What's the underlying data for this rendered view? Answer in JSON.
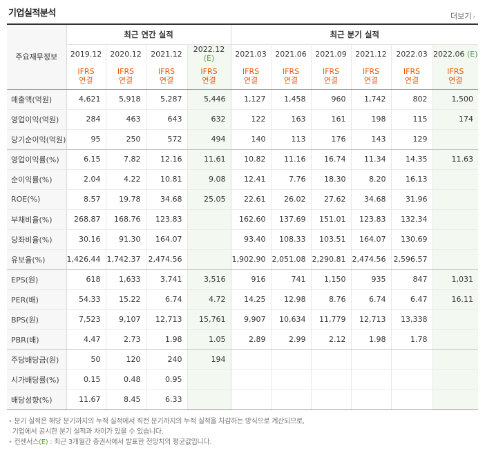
{
  "title": "기업실적분석",
  "more_label": "더보기",
  "row_header_label": "주요재무정보",
  "groups": {
    "annual": "최근 연간 실적",
    "quarterly": "최근 분기 실적"
  },
  "periods": [
    {
      "label": "2019.12",
      "est": ""
    },
    {
      "label": "2020.12",
      "est": ""
    },
    {
      "label": "2021.12",
      "est": ""
    },
    {
      "label": "2022.12",
      "est": "(E)"
    },
    {
      "label": "2021.03",
      "est": ""
    },
    {
      "label": "2021.06",
      "est": ""
    },
    {
      "label": "2021.09",
      "est": ""
    },
    {
      "label": "2021.12",
      "est": ""
    },
    {
      "label": "2022.03",
      "est": ""
    },
    {
      "label": "2022.06",
      "est": "(E)"
    }
  ],
  "standard": {
    "line1": "IFRS",
    "line2": "연결"
  },
  "rows": [
    {
      "label": "매출액(억원)",
      "values": [
        "4,621",
        "5,918",
        "5,287",
        "5,446",
        "1,127",
        "1,458",
        "960",
        "1,742",
        "802",
        "1,500"
      ]
    },
    {
      "label": "영업이익(억원)",
      "values": [
        "284",
        "463",
        "643",
        "632",
        "122",
        "163",
        "161",
        "198",
        "115",
        "174"
      ]
    },
    {
      "label": "당기순이익(억원)",
      "values": [
        "95",
        "250",
        "572",
        "494",
        "140",
        "113",
        "176",
        "143",
        "129",
        ""
      ]
    },
    {
      "label": "영업이익률(%)",
      "values": [
        "6.15",
        "7.82",
        "12.16",
        "11.61",
        "10.82",
        "11.16",
        "16.74",
        "11.34",
        "14.35",
        "11.63"
      ]
    },
    {
      "label": "순이익률(%)",
      "values": [
        "2.04",
        "4.22",
        "10.81",
        "9.08",
        "12.41",
        "7.76",
        "18.30",
        "8.20",
        "16.13",
        ""
      ]
    },
    {
      "label": "ROE(%)",
      "values": [
        "8.57",
        "19.78",
        "34.68",
        "25.05",
        "22.61",
        "26.02",
        "27.62",
        "34.68",
        "31.96",
        ""
      ]
    },
    {
      "label": "부채비율(%)",
      "values": [
        "268.87",
        "168.76",
        "123.83",
        "",
        "162.60",
        "137.69",
        "151.01",
        "123.83",
        "132.34",
        ""
      ]
    },
    {
      "label": "당좌비율(%)",
      "values": [
        "30.16",
        "91.30",
        "164.07",
        "",
        "93.40",
        "108.33",
        "103.51",
        "164.07",
        "130.69",
        ""
      ]
    },
    {
      "label": "유보율(%)",
      "values": [
        "1,426.44",
        "1,742.37",
        "2,474.56",
        "",
        "1,902.90",
        "2,051.08",
        "2,290.81",
        "2,474.56",
        "2,596.57",
        ""
      ]
    },
    {
      "label": "EPS(원)",
      "values": [
        "618",
        "1,633",
        "3,741",
        "3,516",
        "916",
        "741",
        "1,150",
        "935",
        "847",
        "1,031"
      ]
    },
    {
      "label": "PER(배)",
      "values": [
        "54.33",
        "15.22",
        "6.74",
        "4.72",
        "14.25",
        "12.98",
        "8.76",
        "6.74",
        "6.47",
        "16.11"
      ]
    },
    {
      "label": "BPS(원)",
      "values": [
        "7,523",
        "9,107",
        "12,713",
        "15,761",
        "9,907",
        "10,634",
        "11,779",
        "12,713",
        "13,338",
        ""
      ]
    },
    {
      "label": "PBR(배)",
      "values": [
        "4.47",
        "2.73",
        "1.98",
        "1.05",
        "2.89",
        "2.99",
        "2.12",
        "1.98",
        "1.78",
        ""
      ]
    },
    {
      "label": "주당배당금(원)",
      "values": [
        "50",
        "120",
        "240",
        "194",
        "",
        "",
        "",
        "",
        "",
        ""
      ]
    },
    {
      "label": "시가배당률(%)",
      "values": [
        "0.15",
        "0.48",
        "0.95",
        "",
        "",
        "",
        "",
        "",
        "",
        ""
      ]
    },
    {
      "label": "배당성향(%)",
      "values": [
        "11.67",
        "8.45",
        "6.33",
        "",
        "",
        "",
        "",
        "",
        "",
        ""
      ]
    }
  ],
  "notes": {
    "bullet": "•",
    "line1": "분기 실적은 해당 분기까지의 누적 실적에서 직전 분기까지의 누적 실적을 차감하는 방식으로 계산되므로,",
    "line2": "기업에서 공시한 분기 실적과 차이가 있을 수 있습니다.",
    "consensus_label": "컨센서스",
    "consensus_tag": "(E)",
    "consensus_text": ": 최근 3개월간 증권사에서 발표한 전망치의 평균값입니다."
  }
}
